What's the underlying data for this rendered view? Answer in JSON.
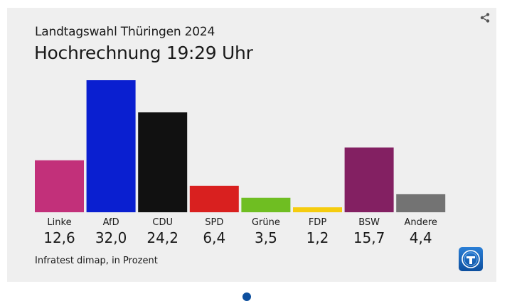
{
  "header": {
    "subtitle": "Landtagswahl Thüringen 2024",
    "title": "Hochrechnung 19:29 Uhr"
  },
  "footer": {
    "source": "Infratest dimap, in Prozent"
  },
  "icons": {
    "share": "share-icon",
    "logo": "tagesschau-logo-icon"
  },
  "chart_data": {
    "type": "bar",
    "categories": [
      "Linke",
      "AfD",
      "CDU",
      "SPD",
      "Grüne",
      "FDP",
      "BSW",
      "Andere"
    ],
    "values": [
      12.6,
      32.0,
      24.2,
      6.4,
      3.5,
      1.2,
      15.7,
      4.4
    ],
    "value_labels": [
      "12,6",
      "32,0",
      "24,2",
      "6,4",
      "3,5",
      "1,2",
      "15,7",
      "4,4"
    ],
    "colors": [
      "#c2307a",
      "#0a1fd0",
      "#111111",
      "#d9201f",
      "#6fbe22",
      "#f5cc0f",
      "#832062",
      "#737373"
    ],
    "title": "Hochrechnung 19:29 Uhr",
    "subtitle": "Landtagswahl Thüringen 2024",
    "ylim": [
      0,
      32.0
    ],
    "grid": false,
    "legend": "none"
  }
}
